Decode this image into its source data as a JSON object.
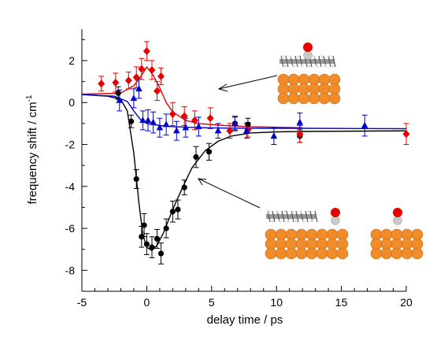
{
  "chart_data": {
    "type": "scatter",
    "xlabel": "delay time / ps",
    "ylabel_main": "frequency shift / cm",
    "ylabel_sup": "-1",
    "xlim": [
      -5,
      20
    ],
    "ylim": [
      -9,
      3.5
    ],
    "xticks": [
      -5,
      0,
      5,
      10,
      15,
      20
    ],
    "yticks": [
      -8,
      -6,
      -4,
      -2,
      0,
      2
    ],
    "xtick_labels": [
      "-5",
      "0",
      "5",
      "10",
      "15",
      "20"
    ],
    "ytick_labels": [
      "-8",
      "-6",
      "-4",
      "-2",
      "0",
      "2"
    ],
    "grid": false,
    "series": [
      {
        "color": "#000000",
        "marker": "circle",
        "points": [
          {
            "x": -2.2,
            "y": 0.45,
            "err": 0.3
          },
          {
            "x": -1.2,
            "y": -0.9,
            "err": 0.3
          },
          {
            "x": -0.8,
            "y": -3.65,
            "err": 0.45
          },
          {
            "x": -0.4,
            "y": -6.4,
            "err": 0.5
          },
          {
            "x": -0.2,
            "y": -5.85,
            "err": 0.55
          },
          {
            "x": 0.0,
            "y": -6.75,
            "err": 0.5
          },
          {
            "x": 0.4,
            "y": -6.9,
            "err": 0.5
          },
          {
            "x": 0.8,
            "y": -6.5,
            "err": 0.45
          },
          {
            "x": 1.1,
            "y": -7.2,
            "err": 0.5
          },
          {
            "x": 1.5,
            "y": -6.0,
            "err": 0.45
          },
          {
            "x": 2.0,
            "y": -5.2,
            "err": 0.5
          },
          {
            "x": 2.4,
            "y": -5.1,
            "err": 0.45
          },
          {
            "x": 2.9,
            "y": -4.05,
            "err": 0.35
          },
          {
            "x": 3.8,
            "y": -2.6,
            "err": 0.5
          },
          {
            "x": 4.8,
            "y": -2.35,
            "err": 0.4
          },
          {
            "x": 6.8,
            "y": -1.0,
            "err": 0.3
          },
          {
            "x": 7.8,
            "y": -1.05,
            "err": 0.3
          },
          {
            "x": 11.8,
            "y": -1.6,
            "err": 0.3
          }
        ],
        "fit": [
          [
            -5,
            0.38
          ],
          [
            -3,
            0.3
          ],
          [
            -2,
            0.15
          ],
          [
            -1.5,
            -0.4
          ],
          [
            -1,
            -2.4
          ],
          [
            -0.6,
            -4.8
          ],
          [
            -0.3,
            -6.3
          ],
          [
            0,
            -6.9
          ],
          [
            0.4,
            -7.05
          ],
          [
            0.8,
            -6.8
          ],
          [
            1.3,
            -6.2
          ],
          [
            2,
            -5.1
          ],
          [
            2.8,
            -4.0
          ],
          [
            3.5,
            -3.1
          ],
          [
            4.5,
            -2.3
          ],
          [
            5.5,
            -1.85
          ],
          [
            6.5,
            -1.6
          ],
          [
            8,
            -1.45
          ],
          [
            10,
            -1.4
          ],
          [
            12,
            -1.38
          ],
          [
            20,
            -1.35
          ]
        ]
      },
      {
        "color": "#e60000",
        "marker": "diamond",
        "points": [
          {
            "x": -3.5,
            "y": 0.9,
            "err": 0.35
          },
          {
            "x": -2.4,
            "y": 0.95,
            "err": 0.45
          },
          {
            "x": -1.4,
            "y": 1.05,
            "err": 0.4
          },
          {
            "x": -0.8,
            "y": 1.2,
            "err": 0.5
          },
          {
            "x": -0.4,
            "y": 1.6,
            "err": 0.5
          },
          {
            "x": 0.0,
            "y": 2.45,
            "err": 0.45
          },
          {
            "x": 0.4,
            "y": 1.55,
            "err": 0.45
          },
          {
            "x": 0.8,
            "y": 0.55,
            "err": 0.45
          },
          {
            "x": 1.1,
            "y": 1.25,
            "err": 0.4
          },
          {
            "x": 2.0,
            "y": -0.55,
            "err": 0.55
          },
          {
            "x": 2.9,
            "y": -0.65,
            "err": 0.45
          },
          {
            "x": 3.7,
            "y": -0.85,
            "err": 0.45
          },
          {
            "x": 4.9,
            "y": -0.75,
            "err": 0.5
          },
          {
            "x": 6.4,
            "y": -1.35,
            "err": 0.35
          },
          {
            "x": 7.8,
            "y": -1.3,
            "err": 0.35
          },
          {
            "x": 11.8,
            "y": -1.5,
            "err": 0.4
          },
          {
            "x": 20.0,
            "y": -1.5,
            "err": 0.5
          }
        ],
        "fit": [
          [
            -5,
            0.4
          ],
          [
            -2,
            0.45
          ],
          [
            -1,
            0.8
          ],
          [
            -0.5,
            1.2
          ],
          [
            0,
            1.7
          ],
          [
            0.5,
            1.3
          ],
          [
            1,
            0.7
          ],
          [
            1.5,
            0.0
          ],
          [
            2,
            -0.45
          ],
          [
            3,
            -0.85
          ],
          [
            4,
            -1.0
          ],
          [
            6,
            -1.1
          ],
          [
            8,
            -1.15
          ],
          [
            12,
            -1.2
          ]
        ]
      },
      {
        "color": "#0000cc",
        "marker": "triangle",
        "points": [
          {
            "x": -2.1,
            "y": 0.1,
            "err": 0.5
          },
          {
            "x": -1.0,
            "y": 0.2,
            "err": 0.45
          },
          {
            "x": -0.6,
            "y": 0.65,
            "err": 0.45
          },
          {
            "x": -0.3,
            "y": -0.85,
            "err": 0.45
          },
          {
            "x": 0.1,
            "y": -0.85,
            "err": 0.5
          },
          {
            "x": 0.5,
            "y": -0.95,
            "err": 0.5
          },
          {
            "x": 1.0,
            "y": -1.2,
            "err": 0.45
          },
          {
            "x": 1.5,
            "y": -1.05,
            "err": 0.5
          },
          {
            "x": 2.3,
            "y": -1.35,
            "err": 0.45
          },
          {
            "x": 3.0,
            "y": -1.2,
            "err": 0.45
          },
          {
            "x": 4.0,
            "y": -1.15,
            "err": 0.45
          },
          {
            "x": 5.5,
            "y": -1.35,
            "err": 0.35
          },
          {
            "x": 6.8,
            "y": -1.0,
            "err": 0.35
          },
          {
            "x": 7.7,
            "y": -1.35,
            "err": 0.35
          },
          {
            "x": 9.8,
            "y": -1.6,
            "err": 0.4
          },
          {
            "x": 11.8,
            "y": -0.95,
            "err": 0.45
          },
          {
            "x": 16.8,
            "y": -1.1,
            "err": 0.5
          }
        ],
        "fit": [
          [
            -5,
            0.38
          ],
          [
            -2.5,
            0.3
          ],
          [
            -1.5,
            0.05
          ],
          [
            -1,
            -0.4
          ],
          [
            -0.5,
            -0.8
          ],
          [
            0,
            -1.0
          ],
          [
            1,
            -1.1
          ],
          [
            2,
            -1.15
          ],
          [
            4,
            -1.2
          ],
          [
            6,
            -1.22
          ],
          [
            9,
            -1.23
          ],
          [
            12,
            -1.23
          ],
          [
            17,
            -1.24
          ],
          [
            20,
            -1.25
          ]
        ]
      }
    ]
  },
  "illustrations": {
    "molecule_label": "CO-molecule-on-surface",
    "colors": {
      "substrate": "#f08c2a",
      "oxygen": "#e60000",
      "carbon": "#c8c8c8",
      "organic": "#555555"
    }
  }
}
